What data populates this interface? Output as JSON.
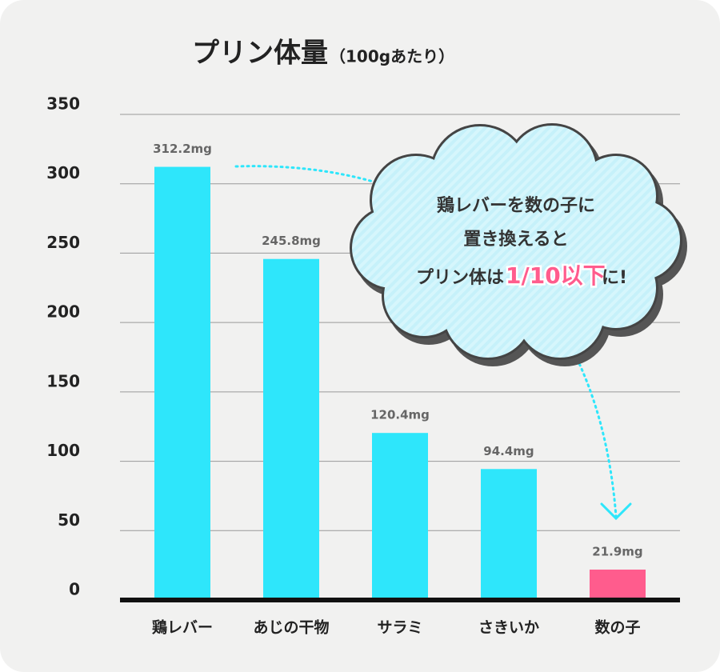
{
  "chart_data": {
    "type": "bar",
    "title": "プリン体量",
    "subtitle": "（100gあたり）",
    "categories": [
      "鶏レバー",
      "あじの干物",
      "サラミ",
      "さきいか",
      "数の子"
    ],
    "values": [
      312.2,
      245.8,
      120.4,
      94.4,
      21.9
    ],
    "value_labels": [
      "312.2mg",
      "245.8mg",
      "120.4mg",
      "94.4mg",
      "21.9mg"
    ],
    "colors": [
      "#2ee6fb",
      "#2ee6fb",
      "#2ee6fb",
      "#2ee6fb",
      "#ff5c8d"
    ],
    "ylim": [
      0,
      350
    ],
    "yticks": [
      0,
      50,
      100,
      150,
      200,
      250,
      300,
      350
    ],
    "grid": true,
    "annotation": {
      "line1": "鶏レバーを数の子に",
      "line2": "置き換えると",
      "line3a": "プリン体は",
      "line3b": "1/10以下",
      "line3c": "に!"
    }
  }
}
